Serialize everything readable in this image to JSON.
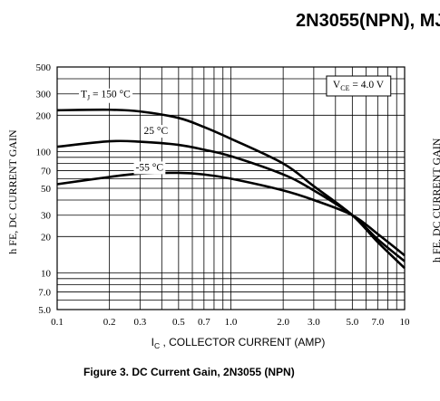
{
  "header": {
    "title": "2N3055(NPN), MJ"
  },
  "caption": "Figure 3. DC Current Gain, 2N3055 (NPN)",
  "edge_fragment": "h FE, DC CURRENT  GAIN",
  "chart_data": {
    "type": "line",
    "title": "",
    "xlabel": "I_C , COLLECTOR CURRENT (AMP)",
    "xlabel_main": "I",
    "xlabel_sub": "C",
    "xlabel_rest": " , COLLECTOR CURRENT (AMP)",
    "ylabel": "h FE, DC CURRENT  GAIN",
    "xscale": "log",
    "yscale": "log",
    "xlim": [
      0.1,
      10
    ],
    "ylim": [
      5,
      500
    ],
    "grid": true,
    "x_ticks": [
      {
        "value": 0.1,
        "label": "0.1"
      },
      {
        "value": 0.2,
        "label": "0.2"
      },
      {
        "value": 0.3,
        "label": "0.3"
      },
      {
        "value": 0.5,
        "label": "0.5"
      },
      {
        "value": 0.7,
        "label": "0.7"
      },
      {
        "value": 1.0,
        "label": "1.0"
      },
      {
        "value": 2.0,
        "label": "2.0"
      },
      {
        "value": 3.0,
        "label": "3.0"
      },
      {
        "value": 5.0,
        "label": "5.0"
      },
      {
        "value": 7.0,
        "label": "7.0"
      },
      {
        "value": 10,
        "label": "10"
      }
    ],
    "y_ticks": [
      {
        "value": 5,
        "label": "5.0"
      },
      {
        "value": 7,
        "label": "7.0"
      },
      {
        "value": 10,
        "label": "10"
      },
      {
        "value": 20,
        "label": "20"
      },
      {
        "value": 30,
        "label": "30"
      },
      {
        "value": 50,
        "label": "50"
      },
      {
        "value": 70,
        "label": "70"
      },
      {
        "value": 100,
        "label": "100"
      },
      {
        "value": 200,
        "label": "200"
      },
      {
        "value": 300,
        "label": "300"
      },
      {
        "value": 500,
        "label": "500"
      }
    ],
    "condition_label": "V_CE = 4.0 V",
    "condition": {
      "main": "V",
      "sub": "CE",
      "rest": " = 4.0 V"
    },
    "series": [
      {
        "name": "T_J = 150 °C",
        "label_main": "T",
        "label_sub": "J",
        "label_rest": " = 150 °C",
        "points": [
          [
            0.1,
            220
          ],
          [
            0.2,
            222
          ],
          [
            0.3,
            215
          ],
          [
            0.5,
            190
          ],
          [
            0.7,
            160
          ],
          [
            1.0,
            128
          ],
          [
            2.0,
            80
          ],
          [
            3.0,
            52
          ],
          [
            5.0,
            30
          ],
          [
            7.0,
            18
          ],
          [
            10,
            11
          ]
        ]
      },
      {
        "name": "25 °C",
        "label_main": "25 °C",
        "label_sub": "",
        "label_rest": "",
        "points": [
          [
            0.1,
            110
          ],
          [
            0.2,
            122
          ],
          [
            0.3,
            121
          ],
          [
            0.5,
            114
          ],
          [
            0.7,
            104
          ],
          [
            1.0,
            92
          ],
          [
            2.0,
            65
          ],
          [
            3.0,
            48
          ],
          [
            5.0,
            30
          ],
          [
            7.0,
            19
          ],
          [
            10,
            12.5
          ]
        ]
      },
      {
        "name": "-55 °C",
        "label_main": "-55  °C",
        "label_sub": "",
        "label_rest": "",
        "points": [
          [
            0.1,
            54
          ],
          [
            0.2,
            62
          ],
          [
            0.3,
            66
          ],
          [
            0.5,
            67
          ],
          [
            0.7,
            65
          ],
          [
            1.0,
            60
          ],
          [
            2.0,
            48
          ],
          [
            3.0,
            40
          ],
          [
            5.0,
            30
          ],
          [
            7.0,
            21
          ],
          [
            10,
            14
          ]
        ]
      }
    ]
  }
}
